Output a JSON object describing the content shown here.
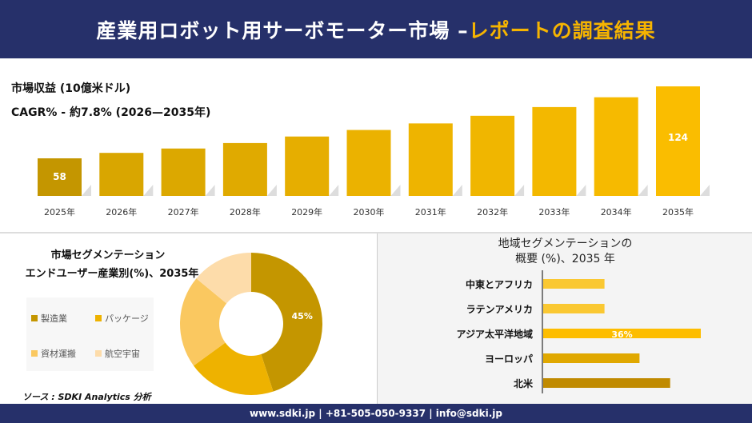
{
  "header": {
    "title_main": "産業用ロボット用サーボモーター市場 –",
    "title_highlight": "レポートの調査結果"
  },
  "colors": {
    "navy": "#26306a",
    "highlight": "#f6b400"
  },
  "chart_data": [
    {
      "type": "bar",
      "title": "市場収益 (10億米ドル)",
      "subtitle": "CAGR% - 約7.8% (2026—2035年)",
      "categories": [
        "2025年",
        "2026年",
        "2027年",
        "2028年",
        "2029年",
        "2030年",
        "2031年",
        "2032年",
        "2033年",
        "2034年",
        "2035年"
      ],
      "values": [
        58,
        63,
        67,
        72,
        78,
        84,
        90,
        97,
        105,
        114,
        124
      ],
      "data_labels": {
        "0": "58",
        "10": "124"
      },
      "colors": [
        "#c49600",
        "#d9a600",
        "#dca800",
        "#e0aa00",
        "#e6ae00",
        "#ebb200",
        "#eeb400",
        "#f0b600",
        "#f3b800",
        "#f6ba00",
        "#fabd00"
      ]
    },
    {
      "type": "pie",
      "title": "市場セグメンテーション",
      "subtitle": "エンドユーザー産業別(%)、2035年",
      "labels": [
        "製造業",
        "パッケージ",
        "資材運搬",
        "航空宇宙"
      ],
      "values": [
        45,
        20,
        21,
        14
      ],
      "colors": [
        "#c49600",
        "#eeb200",
        "#fac860",
        "#fddcaa"
      ],
      "data_labels": {
        "0": "45%"
      }
    },
    {
      "type": "bar",
      "orientation": "horizontal",
      "title": "地域セグメンテーションの\n概要 (%)、2035 年",
      "categories": [
        "中東とアフリカ",
        "ラテンアメリカ",
        "アジア太平洋地域",
        "ヨーロッパ",
        "北米"
      ],
      "values": [
        14,
        14,
        36,
        22,
        29
      ],
      "colors": [
        "#fac832",
        "#fac832",
        "#fdbd00",
        "#e0a800",
        "#c08a00"
      ],
      "data_labels": {
        "2": "36%"
      }
    }
  ],
  "source": "ソース : SDKI Analytics 分析",
  "footer": "www.sdki.jp | +81-505-050-9337 | info@sdki.jp"
}
